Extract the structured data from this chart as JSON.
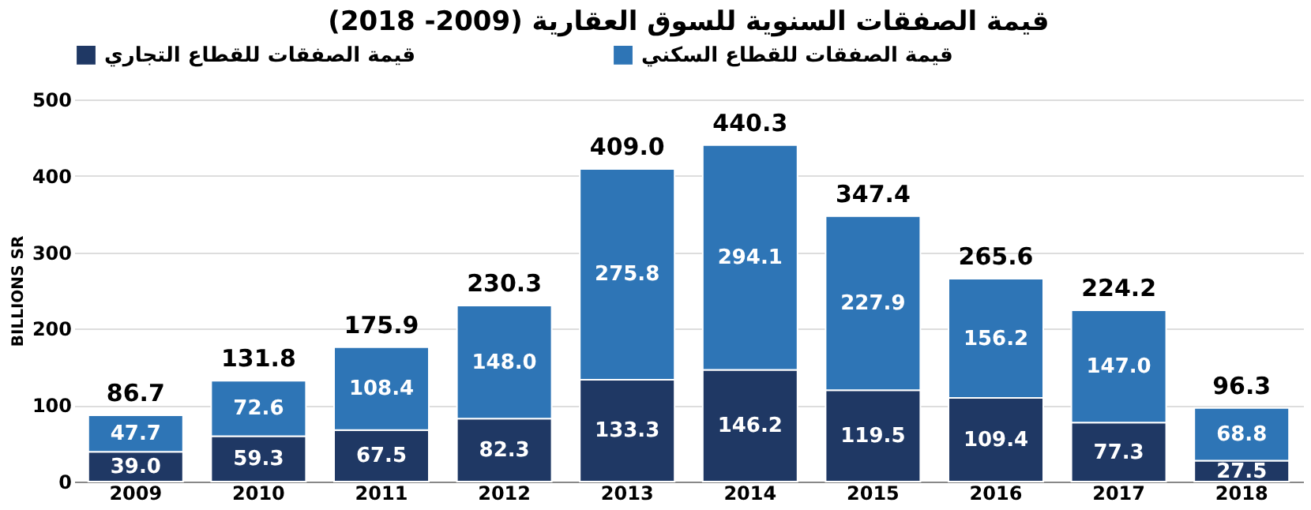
{
  "chart_data": {
    "type": "bar",
    "title": "قيمة الصفقات السنوية للسوق العقارية (2009- 2018)",
    "ylabel": "BILLIONS SR",
    "categories": [
      "2009",
      "2010",
      "2011",
      "2012",
      "2013",
      "2014",
      "2015",
      "2016",
      "2017",
      "2018"
    ],
    "series": [
      {
        "name": "قيمة الصفقات للقطاع التجاري",
        "color": "#1f3864",
        "values": [
          39.0,
          59.3,
          67.5,
          82.3,
          133.3,
          146.2,
          119.5,
          109.4,
          77.3,
          27.5
        ],
        "value_labels": [
          "39.0",
          "59.3",
          "67.5",
          "82.3",
          "133.3",
          "146.2",
          "119.5",
          "109.4",
          "77.3",
          "27.5"
        ]
      },
      {
        "name": "قيمة الصفقات للقطاع السكني",
        "color": "#2e75b6",
        "values": [
          47.7,
          72.6,
          108.4,
          148.0,
          275.8,
          294.1,
          227.9,
          156.2,
          147.0,
          68.8
        ],
        "value_labels": [
          "47.7",
          "72.6",
          "108.4",
          "148.0",
          "275.8",
          "294.1",
          "227.9",
          "156.2",
          "147.0",
          "68.8"
        ]
      }
    ],
    "stacked": true,
    "totals": [
      "86.7",
      "131.8",
      "175.9",
      "230.3",
      "409.0",
      "440.3",
      "347.4",
      "265.6",
      "224.2",
      "96.3"
    ],
    "ylim": [
      0,
      500
    ],
    "yticks": [
      0,
      100,
      200,
      300,
      400,
      500
    ],
    "grid": "y",
    "legend": "top"
  }
}
